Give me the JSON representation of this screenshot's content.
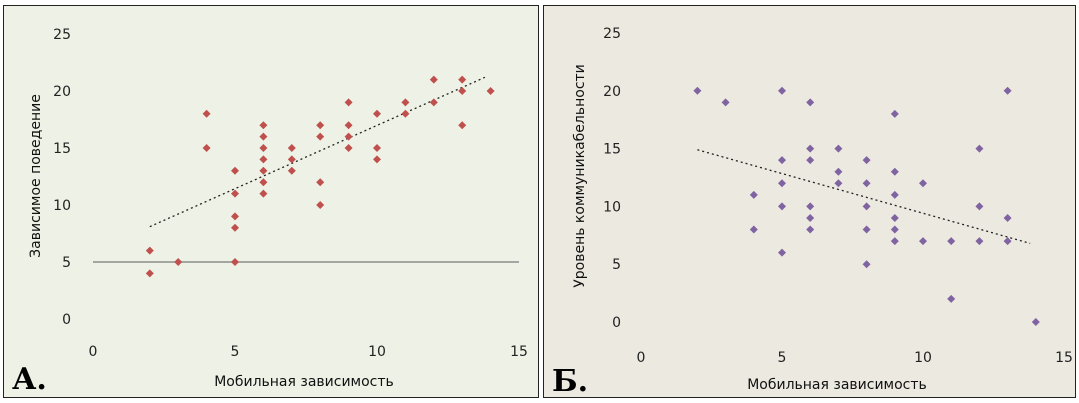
{
  "chart_data": [
    {
      "type": "scatter",
      "panel_label": "А.",
      "xlabel": "Мобильная зависимость",
      "ylabel": "Зависимое поведение",
      "xlim": [
        0,
        15
      ],
      "ylim": [
        0,
        25
      ],
      "xticks": [
        0,
        5,
        10,
        15
      ],
      "yticks": [
        0,
        5,
        10,
        15,
        20,
        25
      ],
      "tick_labels_x": [
        "0",
        "5",
        "10",
        "15"
      ],
      "tick_labels_y": [
        "0",
        "5",
        "10",
        "15",
        "20",
        "25"
      ],
      "marker_color": "#c0504d",
      "grid": false,
      "reference_line": {
        "y": 5,
        "color": "#8c8c8c"
      },
      "trendline": {
        "x": [
          2,
          13.8
        ],
        "y": [
          8.1,
          21.2
        ]
      },
      "points": [
        [
          2,
          4
        ],
        [
          2,
          6
        ],
        [
          3,
          5
        ],
        [
          4,
          15
        ],
        [
          4,
          18
        ],
        [
          5,
          5
        ],
        [
          5,
          8
        ],
        [
          5,
          9
        ],
        [
          5,
          11
        ],
        [
          5,
          13
        ],
        [
          6,
          11
        ],
        [
          6,
          12
        ],
        [
          6,
          13
        ],
        [
          6,
          14
        ],
        [
          6,
          15
        ],
        [
          6,
          16
        ],
        [
          6,
          17
        ],
        [
          7,
          13
        ],
        [
          7,
          14
        ],
        [
          7,
          15
        ],
        [
          8,
          10
        ],
        [
          8,
          12
        ],
        [
          8,
          16
        ],
        [
          8,
          17
        ],
        [
          9,
          15
        ],
        [
          9,
          16
        ],
        [
          9,
          17
        ],
        [
          9,
          19
        ],
        [
          10,
          14
        ],
        [
          10,
          15
        ],
        [
          10,
          18
        ],
        [
          11,
          18
        ],
        [
          11,
          19
        ],
        [
          12,
          19
        ],
        [
          12,
          21
        ],
        [
          13,
          17
        ],
        [
          13,
          20
        ],
        [
          13,
          21
        ],
        [
          14,
          20
        ]
      ]
    },
    {
      "type": "scatter",
      "panel_label": "Б.",
      "xlabel": "Мобильная зависимость",
      "ylabel": "Уровень коммуникабельности",
      "xlim": [
        0,
        15
      ],
      "ylim": [
        0,
        25
      ],
      "xticks": [
        0,
        5,
        10,
        15
      ],
      "yticks": [
        0,
        5,
        10,
        15,
        20,
        25
      ],
      "tick_labels_x": [
        "0",
        "5",
        "10",
        "15"
      ],
      "tick_labels_y": [
        "0",
        "5",
        "10",
        "15",
        "20",
        "25"
      ],
      "marker_color": "#8064a2",
      "grid": false,
      "trendline": {
        "x": [
          2,
          13.8
        ],
        "y": [
          14.9,
          6.8
        ]
      },
      "points": [
        [
          2,
          20
        ],
        [
          3,
          19
        ],
        [
          4,
          8
        ],
        [
          4,
          11
        ],
        [
          5,
          6
        ],
        [
          5,
          10
        ],
        [
          5,
          12
        ],
        [
          5,
          14
        ],
        [
          5,
          20
        ],
        [
          6,
          8
        ],
        [
          6,
          9
        ],
        [
          6,
          10
        ],
        [
          6,
          14
        ],
        [
          6,
          15
        ],
        [
          6,
          19
        ],
        [
          7,
          12
        ],
        [
          7,
          13
        ],
        [
          7,
          15
        ],
        [
          8,
          5
        ],
        [
          8,
          8
        ],
        [
          8,
          10
        ],
        [
          8,
          12
        ],
        [
          8,
          14
        ],
        [
          9,
          7
        ],
        [
          9,
          8
        ],
        [
          9,
          9
        ],
        [
          9,
          11
        ],
        [
          9,
          13
        ],
        [
          9,
          18
        ],
        [
          10,
          7
        ],
        [
          10,
          12
        ],
        [
          11,
          2
        ],
        [
          11,
          7
        ],
        [
          12,
          7
        ],
        [
          12,
          10
        ],
        [
          12,
          15
        ],
        [
          13,
          7
        ],
        [
          13,
          9
        ],
        [
          13,
          20
        ],
        [
          14,
          0
        ]
      ]
    }
  ]
}
